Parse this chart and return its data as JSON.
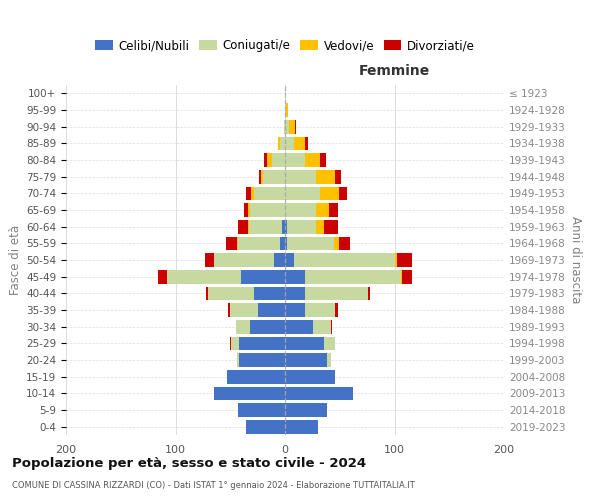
{
  "age_groups": [
    "0-4",
    "5-9",
    "10-14",
    "15-19",
    "20-24",
    "25-29",
    "30-34",
    "35-39",
    "40-44",
    "45-49",
    "50-54",
    "55-59",
    "60-64",
    "65-69",
    "70-74",
    "75-79",
    "80-84",
    "85-89",
    "90-94",
    "95-99",
    "100+"
  ],
  "birth_years": [
    "2019-2023",
    "2014-2018",
    "2009-2013",
    "2004-2008",
    "1999-2003",
    "1994-1998",
    "1989-1993",
    "1984-1988",
    "1979-1983",
    "1974-1978",
    "1969-1973",
    "1964-1968",
    "1959-1963",
    "1954-1958",
    "1949-1953",
    "1944-1948",
    "1939-1943",
    "1934-1938",
    "1929-1933",
    "1924-1928",
    "≤ 1923"
  ],
  "colors": {
    "celibi": "#4472c4",
    "coniugati": "#c5d9a0",
    "vedovi": "#ffc000",
    "divorziati": "#cc0000"
  },
  "male_celibi": [
    36,
    43,
    65,
    53,
    42,
    42,
    32,
    25,
    28,
    40,
    10,
    5,
    3,
    0,
    0,
    0,
    0,
    0,
    0,
    0,
    0
  ],
  "male_coniugati": [
    0,
    0,
    0,
    0,
    2,
    7,
    13,
    25,
    42,
    68,
    55,
    38,
    30,
    32,
    28,
    20,
    12,
    5,
    1,
    0,
    0
  ],
  "male_vedovi": [
    0,
    0,
    0,
    0,
    0,
    0,
    0,
    0,
    0,
    0,
    0,
    1,
    1,
    2,
    3,
    2,
    4,
    1,
    0,
    0,
    0
  ],
  "male_divorziati": [
    0,
    0,
    0,
    0,
    0,
    1,
    0,
    2,
    2,
    8,
    8,
    10,
    9,
    3,
    5,
    2,
    3,
    0,
    0,
    0,
    0
  ],
  "female_nubili": [
    30,
    38,
    62,
    46,
    38,
    36,
    26,
    18,
    18,
    18,
    8,
    2,
    2,
    0,
    0,
    0,
    0,
    0,
    0,
    0,
    0
  ],
  "female_coniugate": [
    0,
    0,
    0,
    0,
    4,
    10,
    16,
    28,
    58,
    88,
    92,
    43,
    26,
    28,
    32,
    28,
    18,
    8,
    4,
    1,
    0
  ],
  "female_vedove": [
    0,
    0,
    0,
    0,
    0,
    0,
    0,
    0,
    0,
    1,
    2,
    4,
    8,
    12,
    17,
    18,
    14,
    10,
    5,
    2,
    0
  ],
  "female_divorziate": [
    0,
    0,
    0,
    0,
    0,
    0,
    1,
    2,
    2,
    9,
    14,
    10,
    12,
    8,
    8,
    5,
    5,
    3,
    1,
    0,
    0
  ],
  "xlim": 200,
  "title": "Popolazione per età, sesso e stato civile - 2024",
  "subtitle": "COMUNE DI CASSINA RIZZARDI (CO) - Dati ISTAT 1° gennaio 2024 - Elaborazione TUTTAITALIA.IT",
  "ylabel_left": "Fasce di età",
  "ylabel_right": "Anni di nascita",
  "xlabel_right": "Femmine",
  "legend_labels": [
    "Celibi/Nubili",
    "Coniugati/e",
    "Vedovi/e",
    "Divorziati/e"
  ],
  "bg_color": "#ffffff",
  "grid_color": "#cccccc"
}
